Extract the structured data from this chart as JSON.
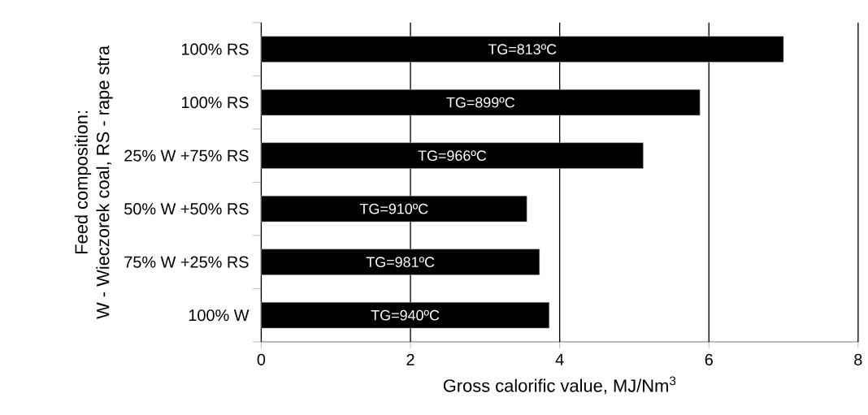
{
  "chart_data": {
    "type": "bar",
    "orientation": "horizontal",
    "xlabel": "Gross calorific value, MJ/Nm$^{3}$",
    "ylabel": "Feed composition:\nW - Wieczorek coal, RS - rape stra",
    "categories": [
      "100% RS",
      "100% RS",
      "25% W +75% RS",
      "50% W +50% RS",
      "75% W +25% RS",
      "100% W"
    ],
    "values": [
      7.0,
      5.88,
      5.12,
      3.56,
      3.73,
      3.86
    ],
    "annotations": [
      "TG=813ºC",
      "TG=899ºC",
      "TG=966ºC",
      "TG=910ºC",
      "TG=981ºC",
      "TG=940ºC"
    ],
    "color": "#000000",
    "xlim": [
      0,
      8
    ],
    "xticks": [
      0,
      2,
      4,
      6,
      8
    ],
    "grid": "x"
  }
}
